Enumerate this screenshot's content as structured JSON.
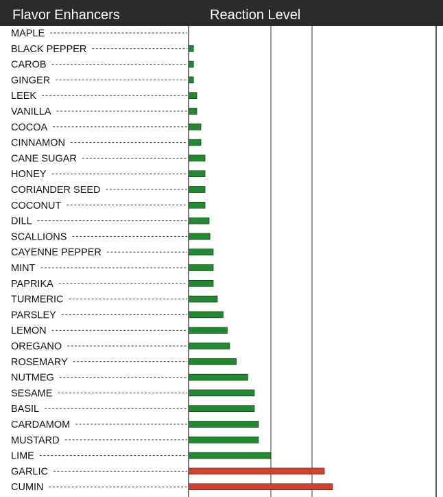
{
  "header": {
    "left_title": "Flavor Enhancers",
    "right_title": "Reaction Level"
  },
  "colors": {
    "header_bg": "#2b2b2b",
    "low_bar": "#1f8a2e",
    "high_bar": "#d2412c",
    "label_text": "#111111"
  },
  "chart_data": {
    "type": "bar",
    "orientation": "horizontal",
    "categories": [
      "MAPLE",
      "BLACK PEPPER",
      "CAROB",
      "GINGER",
      "LEEK",
      "VANILLA",
      "COCOA",
      "CINNAMON",
      "CANE SUGAR",
      "HONEY",
      "CORIANDER SEED",
      "COCONUT",
      "DILL",
      "SCALLIONS",
      "CAYENNE PEPPER",
      "MINT",
      "PAPRIKA",
      "TURMERIC",
      "PARSLEY",
      "LEMON",
      "OREGANO",
      "ROSEMARY",
      "NUTMEG",
      "SESAME",
      "BASIL",
      "CARDAMOM",
      "MUSTARD",
      "LIME",
      "GARLIC",
      "CUMIN"
    ],
    "values": [
      0,
      0.06,
      0.06,
      0.06,
      0.1,
      0.1,
      0.15,
      0.15,
      0.2,
      0.2,
      0.2,
      0.2,
      0.25,
      0.26,
      0.3,
      0.3,
      0.3,
      0.35,
      0.42,
      0.47,
      0.5,
      0.58,
      0.72,
      0.8,
      0.8,
      0.85,
      0.85,
      1.0,
      1.65,
      1.75
    ],
    "colors": [
      "green",
      "green",
      "green",
      "green",
      "green",
      "green",
      "green",
      "green",
      "green",
      "green",
      "green",
      "green",
      "green",
      "green",
      "green",
      "green",
      "green",
      "green",
      "green",
      "green",
      "green",
      "green",
      "green",
      "green",
      "green",
      "green",
      "green",
      "green",
      "red",
      "red"
    ],
    "gridlines_at": [
      1,
      1.5
    ],
    "xlim": [
      0,
      3
    ],
    "title": "",
    "xlabel": "",
    "ylabel": ""
  }
}
